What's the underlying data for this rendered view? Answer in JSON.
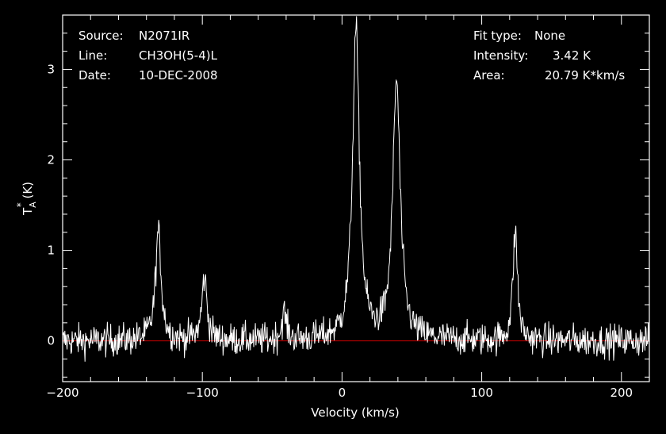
{
  "header": {
    "left": [
      {
        "key": "Source:",
        "value": "N2071IR"
      },
      {
        "key": "Line:",
        "value": "CH3OH(5-4)L"
      },
      {
        "key": "Date:",
        "value": "10-DEC-2008"
      }
    ],
    "right": [
      {
        "key": "Fit type:",
        "value": "None"
      },
      {
        "key": "Intensity:",
        "value": "3.42 K"
      },
      {
        "key": "Area:",
        "value": "20.79 K*km/s"
      }
    ]
  },
  "colors": {
    "background": "#000000",
    "foreground": "#ffffff",
    "baseline": "#cc0000"
  },
  "chart_data": {
    "type": "line",
    "xlabel": "Velocity (km/s)",
    "ylabel_main": "T",
    "ylabel_sub": "A",
    "ylabel_sup": "*",
    "ylabel_unit": " (K)",
    "xlim": [
      -200,
      220
    ],
    "ylim": [
      -0.45,
      3.6
    ],
    "xticks": [
      {
        "value": -200,
        "label": "−200"
      },
      {
        "value": -100,
        "label": "−100"
      },
      {
        "value": 0,
        "label": "0"
      },
      {
        "value": 100,
        "label": "100"
      },
      {
        "value": 200,
        "label": "200"
      }
    ],
    "yticks": [
      {
        "value": 0,
        "label": "0"
      },
      {
        "value": 1,
        "label": "1"
      },
      {
        "value": 2,
        "label": "2"
      },
      {
        "value": 3,
        "label": "3"
      }
    ],
    "baseline": 0,
    "noise_rms": 0.09,
    "channel_width": 0.4,
    "peaks": [
      {
        "x": -131.5,
        "height": 1.2,
        "width": 2.5
      },
      {
        "x": -98.5,
        "height": 0.7,
        "width": 2.2
      },
      {
        "x": -41.5,
        "height": 0.3,
        "width": 2.0
      },
      {
        "x": 10.0,
        "height": 3.42,
        "width": 3.0
      },
      {
        "x": 39.0,
        "height": 2.85,
        "width": 3.2
      },
      {
        "x": 124.0,
        "height": 1.2,
        "width": 2.0
      }
    ]
  }
}
